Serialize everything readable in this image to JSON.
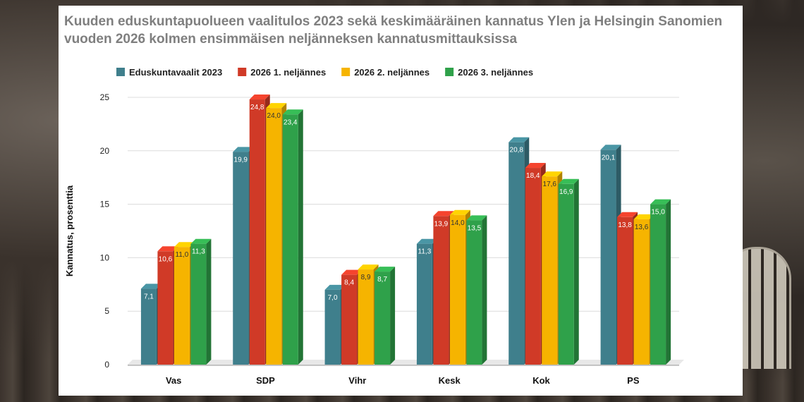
{
  "chart_data": {
    "type": "bar",
    "title": "Kuuden eduskuntapuolueen vaalitulos 2023 sekä keskimääräinen kannatus Ylen ja Helsingin Sanomien  vuoden 2026 kolmen ensimmäisen neljänneksen kannatusmittauksissa",
    "xlabel": "",
    "ylabel": "Kannatus, prosenttia",
    "ylim": [
      0,
      25
    ],
    "yticks": [
      "0",
      "5",
      "10",
      "15",
      "20",
      "25"
    ],
    "grid": true,
    "legend": "top",
    "categories": [
      "Vas",
      "SDP",
      "Vihr",
      "Kesk",
      "Kok",
      "PS"
    ],
    "series": [
      {
        "name": "Eduskuntavaalit 2023",
        "color": "#3f7f8c",
        "values": [
          7.1,
          19.9,
          7.0,
          11.3,
          20.8,
          20.1
        ],
        "labels": [
          "7,1",
          "19,9",
          "7,0",
          "11,3",
          "20,8",
          "20,1"
        ]
      },
      {
        "name": "2026 1. neljännes",
        "color": "#d03a27",
        "values": [
          10.6,
          24.8,
          8.4,
          13.9,
          18.4,
          13.8
        ],
        "labels": [
          "10,6",
          "24,8",
          "8,4",
          "13,9",
          "18,4",
          "13,8"
        ]
      },
      {
        "name": "2026 2. neljännes",
        "color": "#f6b400",
        "values": [
          11.0,
          24.0,
          8.9,
          14.0,
          17.6,
          13.6
        ],
        "labels": [
          "11,0",
          "24,0",
          "8,9",
          "14,0",
          "17,6",
          "13,6"
        ]
      },
      {
        "name": "2026 3. neljännes",
        "color": "#2fa14a",
        "values": [
          11.3,
          23.4,
          8.7,
          13.5,
          16.9,
          15.0
        ],
        "labels": [
          "11,3",
          "23,4",
          "8,7",
          "13,5",
          "16,9",
          "15,0"
        ]
      }
    ]
  }
}
